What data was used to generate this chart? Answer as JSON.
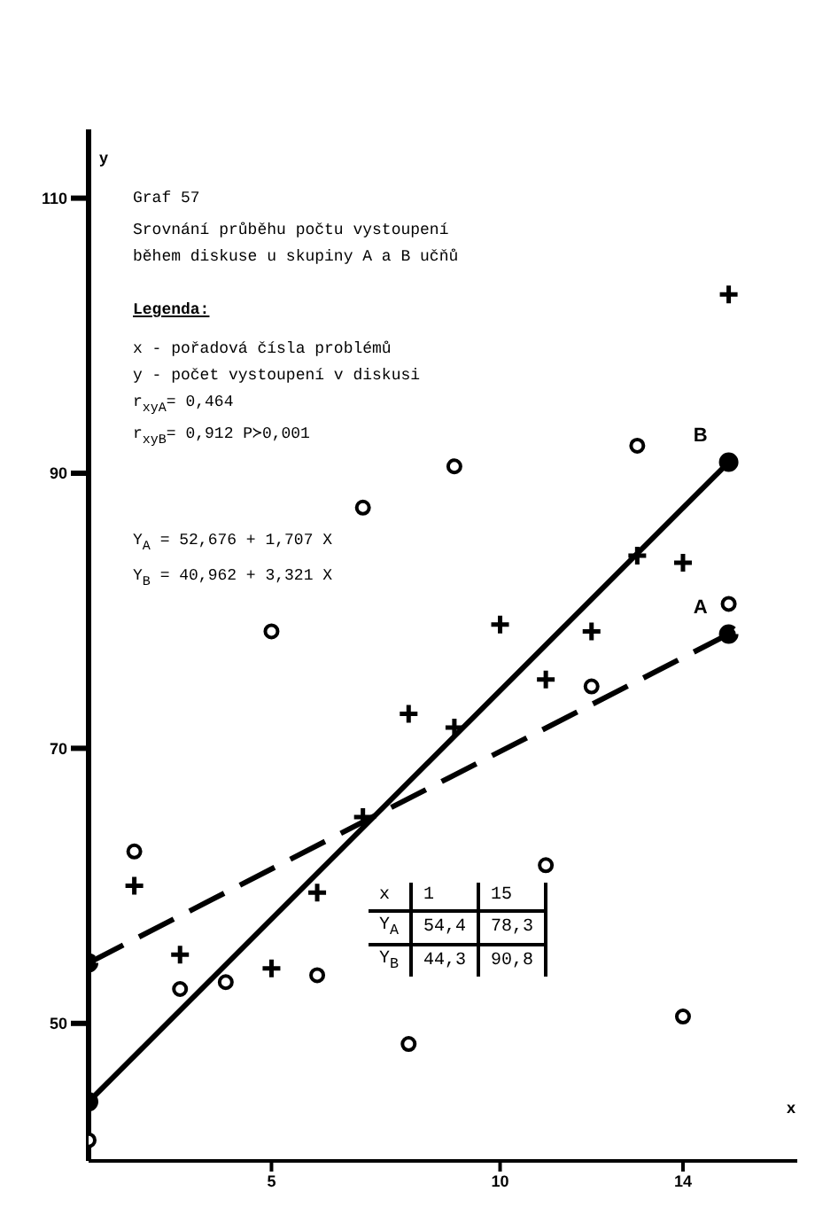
{
  "chart_data": {
    "type": "scatter",
    "title": "Graf 57",
    "subtitle": "Srovnání průběhu počtu vystoupení\nběhem diskuse u skupiny A a B učňů",
    "xlabel": "x",
    "ylabel": "y",
    "annotations": [
      "Legenda:",
      "x   - pořadová čísla problémů",
      "y   - počet vystoupení v diskusi",
      "r$_{xyA}$= 0,464",
      "r$_{xyB}$= 0,912 P≻0,001",
      "Y$_{A}$ = 52,676 + 1,707 X",
      "Y$_{B}$ = 40,962 + 3,321 X",
      "x",
      "1",
      "15",
      "Y$_{A}$",
      "54,4",
      "78,3",
      "Y$_{B}$",
      "44,3",
      "90,8"
    ],
    "xlim": [
      1,
      16.5
    ],
    "xticks": [
      5,
      10,
      14
    ],
    "ylim": [
      40,
      115
    ],
    "yticks": [
      50,
      70,
      90,
      110
    ],
    "grid": false,
    "legend": false,
    "series": [
      {
        "marker": "circle",
        "color": "#000000",
        "x": [
          1,
          2,
          3,
          4,
          5,
          6,
          7,
          8,
          9,
          11,
          12,
          13,
          14,
          15
        ],
        "values": [
          41.5,
          62.5,
          52.5,
          53,
          78.5,
          53.5,
          87.5,
          48.5,
          90.5,
          61.5,
          74.5,
          92,
          50.5,
          80.5
        ]
      },
      {
        "marker": "cross",
        "color": "#000000",
        "x": [
          2,
          3,
          5,
          6,
          7,
          8,
          9,
          10,
          11,
          12,
          13,
          14,
          15
        ],
        "values": [
          60,
          55,
          54,
          59.5,
          65,
          72.5,
          71.5,
          79,
          75,
          78.5,
          84,
          83.5,
          103
        ]
      },
      {
        "type": "line",
        "name": "A",
        "marker": "circle",
        "line_style": "dashed",
        "color": "#000000",
        "x": [
          1,
          15
        ],
        "values": [
          54.4,
          78.3
        ]
      },
      {
        "type": "line",
        "name": "B",
        "marker": "circle",
        "line_style": "solid",
        "color": "#000000",
        "x": [
          1,
          15
        ],
        "values": [
          44.3,
          90.8
        ]
      }
    ]
  }
}
